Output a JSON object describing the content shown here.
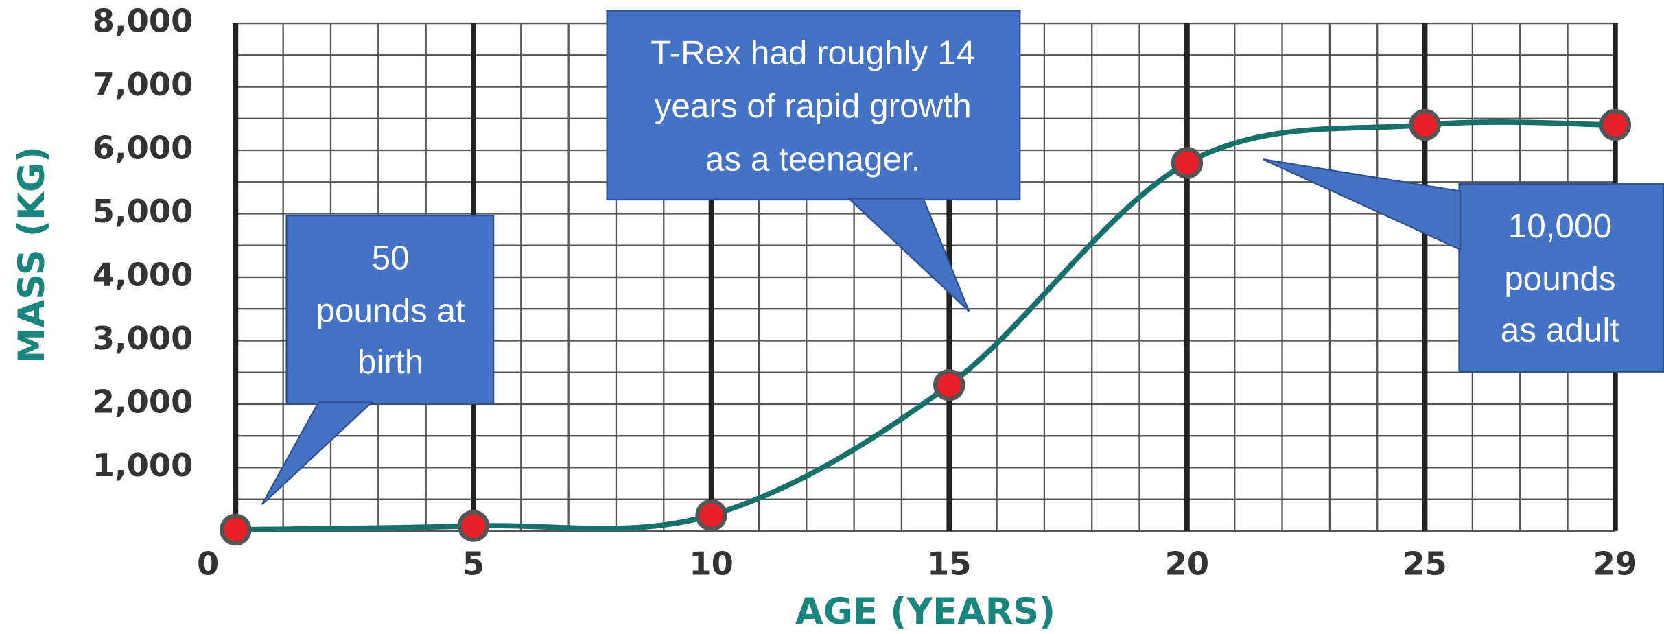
{
  "chart_data": {
    "type": "line",
    "x": [
      0,
      5,
      10,
      15,
      20,
      25,
      29
    ],
    "values": [
      20,
      80,
      250,
      2300,
      5800,
      6400,
      6400
    ],
    "color": "#17706a",
    "marker_color": "#e8202a",
    "x_label": "AGE (YEARS)",
    "y_label": "MASS (KG)",
    "xlim": [
      0,
      29
    ],
    "xticks": [
      0,
      5,
      10,
      15,
      20,
      25,
      29
    ],
    "ylim": [
      0,
      8000
    ],
    "yticks": [
      {
        "value": 1000,
        "label": "1,000"
      },
      {
        "value": 2000,
        "label": "2,000"
      },
      {
        "value": 3000,
        "label": "3,000"
      },
      {
        "value": 4000,
        "label": "4,000"
      },
      {
        "value": 5000,
        "label": "5,000"
      },
      {
        "value": 6000,
        "label": "6,000"
      },
      {
        "value": 7000,
        "label": "7,000"
      },
      {
        "value": 8000,
        "label": "8,000"
      }
    ],
    "grid": true,
    "annotations": [
      {
        "lines": [
          "50",
          "pounds at",
          "birth"
        ]
      },
      {
        "lines": [
          "T-Rex had roughly 14",
          "years of rapid growth",
          "as a teenager."
        ]
      },
      {
        "lines": [
          "10,000",
          "pounds",
          "as adult"
        ]
      }
    ]
  }
}
